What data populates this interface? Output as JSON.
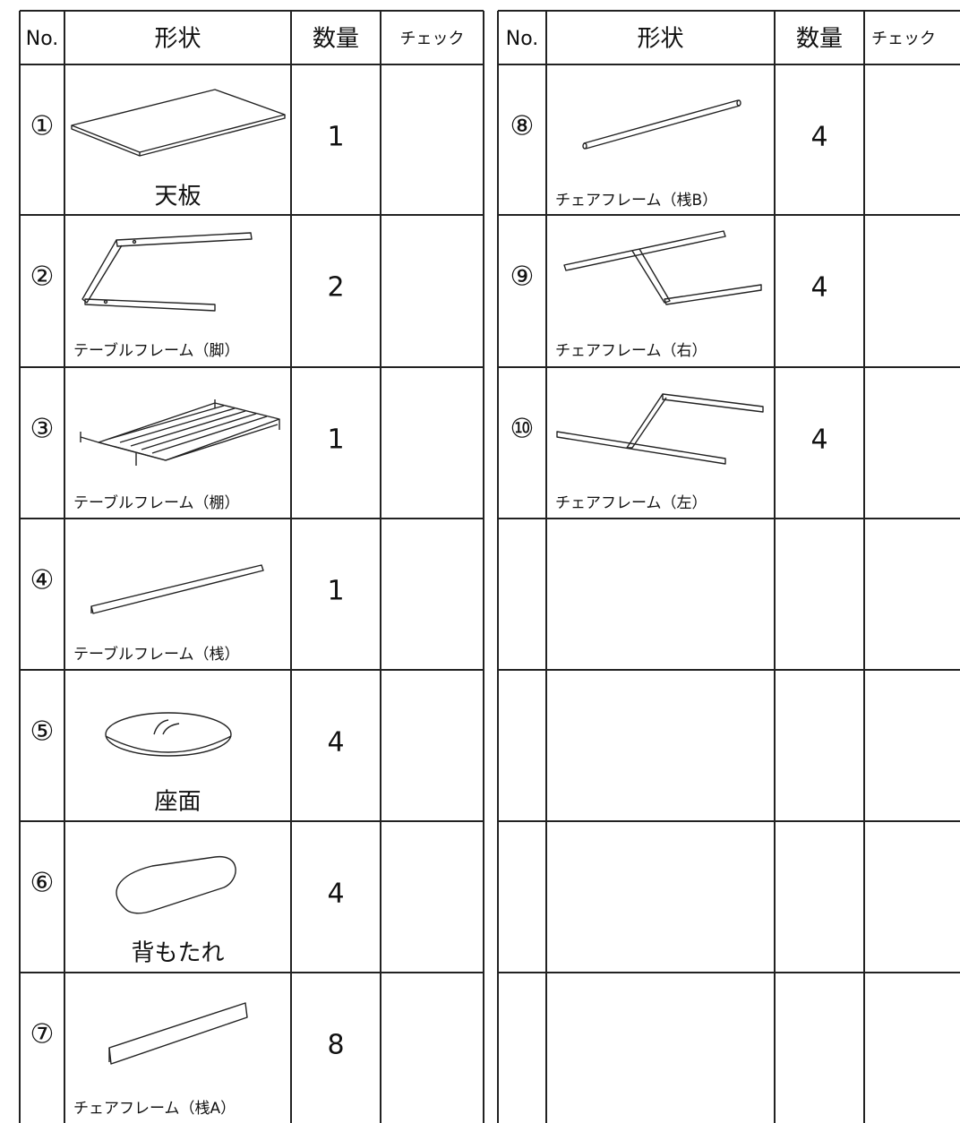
{
  "tables": [
    {
      "header": [
        "No.",
        "形状",
        "数量",
        "チェック"
      ],
      "rows": [
        {
          "no": "①",
          "name": "天板",
          "qty": 1
        },
        {
          "no": "②",
          "name": "テーブルフレーム（脚）",
          "qty": 2
        },
        {
          "no": "③",
          "name": "テーブルフレーム（棚）",
          "qty": 1
        },
        {
          "no": "④",
          "name": "テーブルフレーム（桟）",
          "qty": 1
        },
        {
          "no": "⑤",
          "name": "座面",
          "qty": 4
        },
        {
          "no": "⑥",
          "name": "背もたれ",
          "qty": 4
        },
        {
          "no": "⑦",
          "name": "チェアフレーム（桟A）",
          "qty": 8
        }
      ]
    },
    {
      "header": [
        "No.",
        "形状",
        "数量",
        "チェック"
      ],
      "rows": [
        {
          "no": "⑧",
          "name": "チェアフレーム（桟B）",
          "qty": 4
        },
        {
          "no": "⑨",
          "name": "チェアフレーム（右）",
          "qty": 4
        },
        {
          "no": "⑩",
          "name": "チェアフレーム（左）",
          "qty": 4
        }
      ]
    }
  ]
}
